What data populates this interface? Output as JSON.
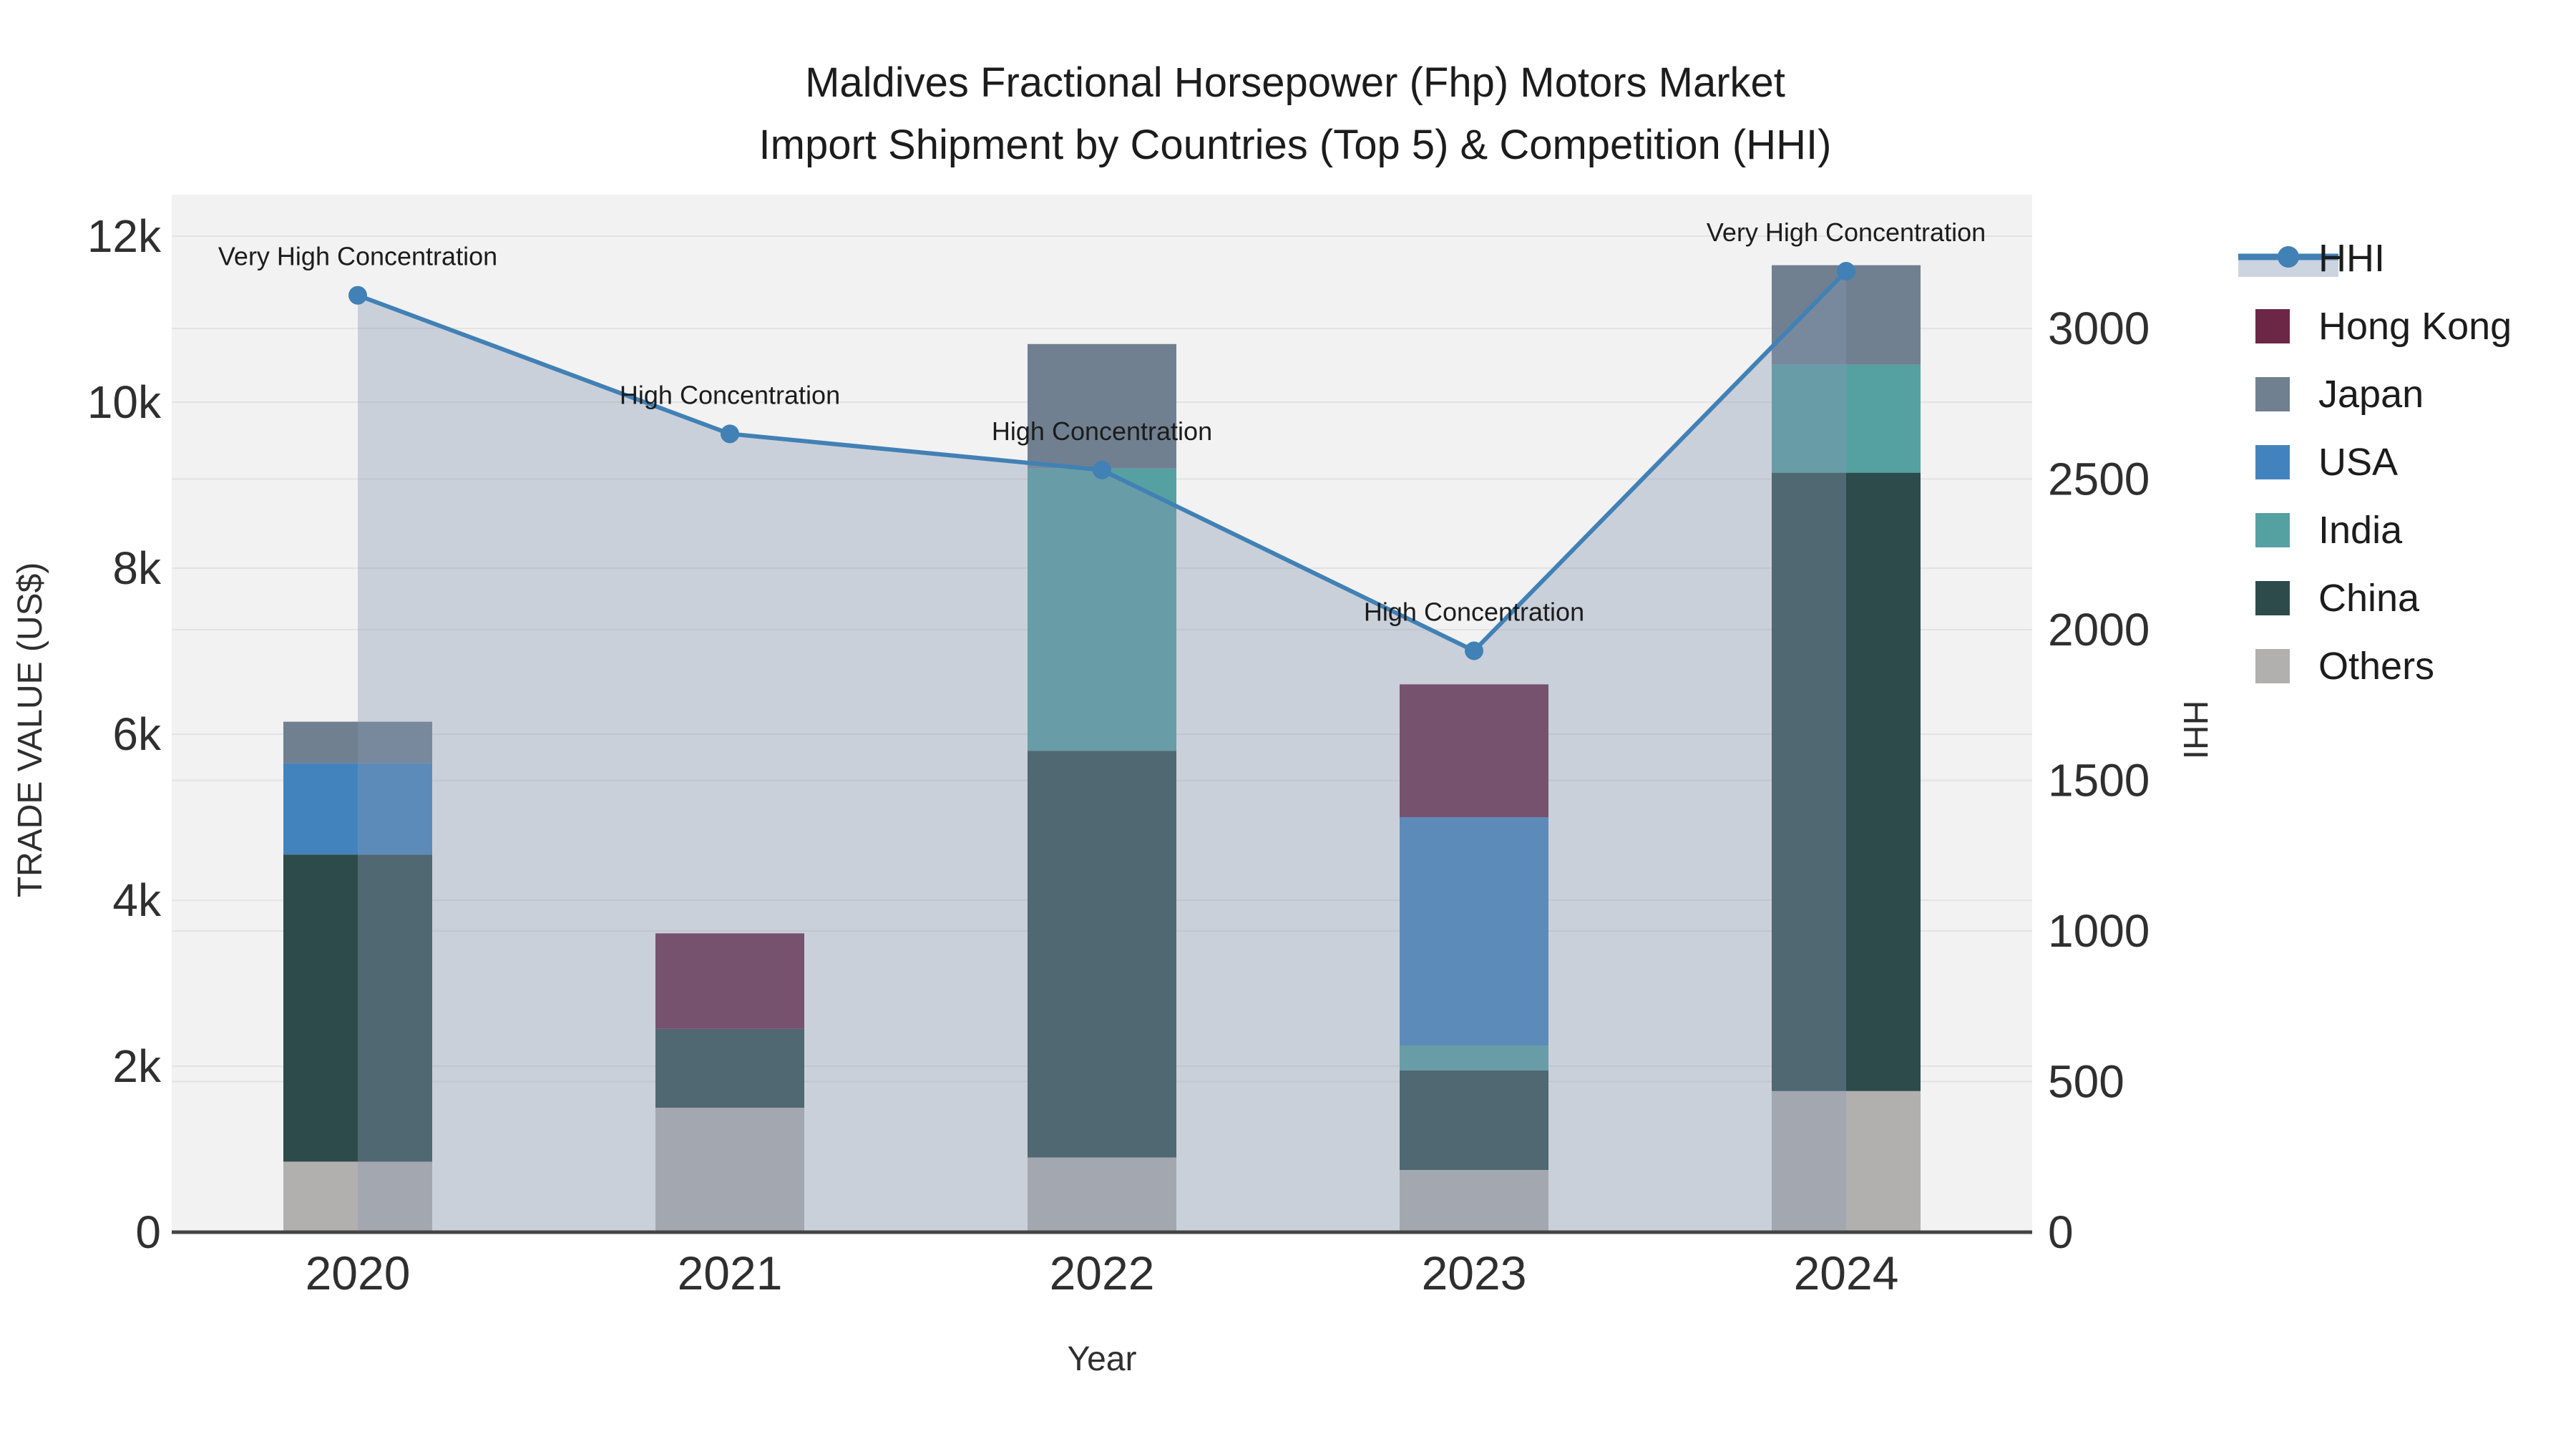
{
  "title": {
    "line1": "Maldives Fractional Horsepower (Fhp) Motors Market",
    "line2": "Import Shipment by Countries (Top 5) & Competition (HHI)"
  },
  "axes": {
    "x": {
      "title": "Year",
      "categories": [
        "2020",
        "2021",
        "2022",
        "2023",
        "2024"
      ]
    },
    "y_left": {
      "title": "TRADE VALUE (US$)",
      "tick_labels": [
        "0",
        "2k",
        "4k",
        "6k",
        "8k",
        "10k",
        "12k"
      ],
      "tick_values": [
        0,
        2000,
        4000,
        6000,
        8000,
        10000,
        12000
      ],
      "range": [
        0,
        12500
      ]
    },
    "y_right": {
      "title": "HHI",
      "tick_labels": [
        "0",
        "500",
        "1000",
        "1500",
        "2000",
        "2500",
        "3000"
      ],
      "tick_values": [
        0,
        500,
        1000,
        1500,
        2000,
        2500,
        3000
      ],
      "range": [
        0,
        3450
      ]
    }
  },
  "chart_data": {
    "type": "combo-stacked-bar-line",
    "categories": [
      "2020",
      "2021",
      "2022",
      "2023",
      "2024"
    ],
    "bar_unit": "US$",
    "series": [
      {
        "name": "Others",
        "color": "#b2b0ae",
        "values": [
          850,
          1500,
          900,
          750,
          1700
        ]
      },
      {
        "name": "China",
        "color": "#2d4b4b",
        "values": [
          3700,
          950,
          4900,
          1200,
          7450
        ]
      },
      {
        "name": "India",
        "color": "#55a1a1",
        "values": [
          0,
          0,
          3400,
          300,
          1300
        ]
      },
      {
        "name": "USA",
        "color": "#4383bd",
        "values": [
          1100,
          0,
          0,
          2750,
          0
        ]
      },
      {
        "name": "Japan",
        "color": "#708090",
        "values": [
          500,
          0,
          1500,
          0,
          1200
        ]
      },
      {
        "name": "Hong Kong",
        "color": "#6c2746",
        "values": [
          0,
          1150,
          0,
          1600,
          0
        ]
      }
    ],
    "bar_totals": [
      6150,
      3600,
      10700,
      6600,
      11650
    ],
    "line_series": {
      "name": "HHI",
      "axis": "right",
      "color": "#4181b5",
      "fill_color": "rgba(136,152,180,0.38)",
      "values": [
        3110,
        2650,
        2530,
        1930,
        3190
      ]
    },
    "annotations": [
      {
        "category": "2020",
        "text": "Very High Concentration"
      },
      {
        "category": "2021",
        "text": "High Concentration"
      },
      {
        "category": "2022",
        "text": "High Concentration"
      },
      {
        "category": "2023",
        "text": "High Concentration"
      },
      {
        "category": "2024",
        "text": "Very High Concentration"
      }
    ],
    "grid": true,
    "plot_bg": "#f2f2f2",
    "grid_color": "#e3e3e3",
    "axis_line_color": "#444444"
  },
  "legend": {
    "items": [
      {
        "label": "HHI",
        "type": "line",
        "color": "#4181b5",
        "band_color": "#ccd4e0"
      },
      {
        "label": "Hong Kong",
        "type": "swatch",
        "color": "#6c2746"
      },
      {
        "label": "Japan",
        "type": "swatch",
        "color": "#708090"
      },
      {
        "label": "USA",
        "type": "swatch",
        "color": "#4383bd"
      },
      {
        "label": "India",
        "type": "swatch",
        "color": "#55a1a1"
      },
      {
        "label": "China",
        "type": "swatch",
        "color": "#2d4b4b"
      },
      {
        "label": "Others",
        "type": "swatch",
        "color": "#b2b0ae"
      }
    ]
  }
}
